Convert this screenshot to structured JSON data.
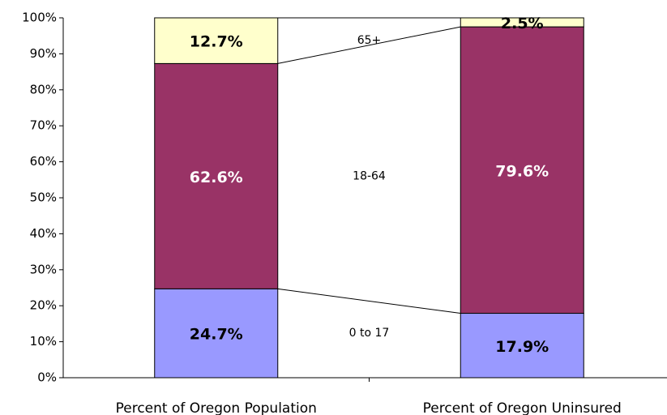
{
  "chart_data": {
    "type": "stacked_bar",
    "categories": [
      "Percent of Oregon Population",
      "Percent of Oregon Uninsured"
    ],
    "series": [
      {
        "name": "0 to 17",
        "color": "#9999ff",
        "values": [
          24.7,
          17.9
        ],
        "value_labels": [
          "24.7%",
          "17.9%"
        ]
      },
      {
        "name": "18-64",
        "color": "#993366",
        "values": [
          62.6,
          79.6
        ],
        "value_labels": [
          "62.6%",
          "79.6%"
        ]
      },
      {
        "name": "65+",
        "color": "#ffffcc",
        "values": [
          12.7,
          2.5
        ],
        "value_labels": [
          "12.7%",
          "2.5%"
        ]
      }
    ],
    "ylim": [
      0,
      100
    ],
    "yticks": [
      {
        "value": 0,
        "label": "0%"
      },
      {
        "value": 10,
        "label": "10%"
      },
      {
        "value": 20,
        "label": "20%"
      },
      {
        "value": 30,
        "label": "30%"
      },
      {
        "value": 40,
        "label": "40%"
      },
      {
        "value": 50,
        "label": "50%"
      },
      {
        "value": 60,
        "label": "60%"
      },
      {
        "value": 70,
        "label": "70%"
      },
      {
        "value": 80,
        "label": "80%"
      },
      {
        "value": 90,
        "label": "90%"
      },
      {
        "value": 100,
        "label": "100%"
      }
    ]
  }
}
